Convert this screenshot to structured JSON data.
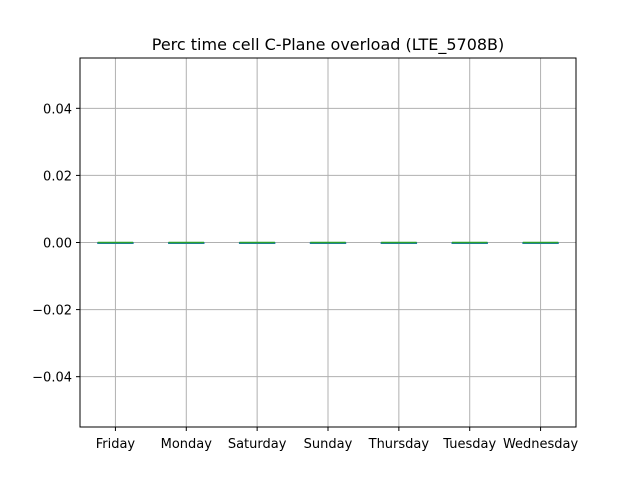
{
  "chart_data": {
    "type": "box",
    "title": "Perc time cell C-Plane overload (LTE_5708B)",
    "xlabel": "",
    "ylabel": "",
    "categories": [
      "Friday",
      "Monday",
      "Saturday",
      "Sunday",
      "Thursday",
      "Tuesday",
      "Wednesday"
    ],
    "boxes": [
      {
        "category": "Friday",
        "min": 0,
        "q1": 0,
        "median": 0,
        "q3": 0,
        "max": 0
      },
      {
        "category": "Monday",
        "min": 0,
        "q1": 0,
        "median": 0,
        "q3": 0,
        "max": 0
      },
      {
        "category": "Saturday",
        "min": 0,
        "q1": 0,
        "median": 0,
        "q3": 0,
        "max": 0
      },
      {
        "category": "Sunday",
        "min": 0,
        "q1": 0,
        "median": 0,
        "q3": 0,
        "max": 0
      },
      {
        "category": "Thursday",
        "min": 0,
        "q1": 0,
        "median": 0,
        "q3": 0,
        "max": 0
      },
      {
        "category": "Tuesday",
        "min": 0,
        "q1": 0,
        "median": 0,
        "q3": 0,
        "max": 0
      },
      {
        "category": "Wednesday",
        "min": 0,
        "q1": 0,
        "median": 0,
        "q3": 0,
        "max": 0
      }
    ],
    "ylim": [
      -0.055,
      0.055
    ],
    "yticks": [
      -0.04,
      -0.02,
      0.0,
      0.02,
      0.04
    ],
    "ytick_labels": [
      "−0.04",
      "−0.02",
      "0.00",
      "0.02",
      "0.04"
    ],
    "grid": true,
    "colors": {
      "grid": "#b0b0b0",
      "axis": "#000000",
      "box": "#1f77b4",
      "median": "#2ca02c"
    }
  }
}
